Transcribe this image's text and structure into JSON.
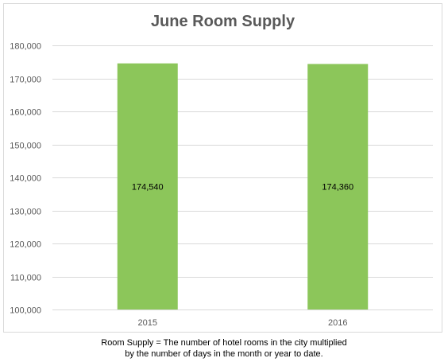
{
  "chart_data": {
    "type": "bar",
    "title": "June Room Supply",
    "categories": [
      "2015",
      "2016"
    ],
    "values": [
      174540,
      174360
    ],
    "data_labels": [
      "174,540",
      "174,360"
    ],
    "ylim": [
      100000,
      180000
    ],
    "yticks": [
      100000,
      110000,
      120000,
      130000,
      140000,
      150000,
      160000,
      170000,
      180000
    ],
    "ytick_labels": [
      "100,000",
      "110,000",
      "120,000",
      "130,000",
      "140,000",
      "150,000",
      "160,000",
      "170,000",
      "180,000"
    ],
    "xlabel": "",
    "ylabel": "",
    "grid": true,
    "legend": "none",
    "bar_color": "#8cc65a",
    "grid_color": "#d9d9d9",
    "tick_label_color": "#595959",
    "title_color": "#595959"
  },
  "footnote": {
    "line1": "Room Supply = The number of hotel rooms in the city multiplied",
    "line2": "by the number of days in the month or year to date."
  }
}
